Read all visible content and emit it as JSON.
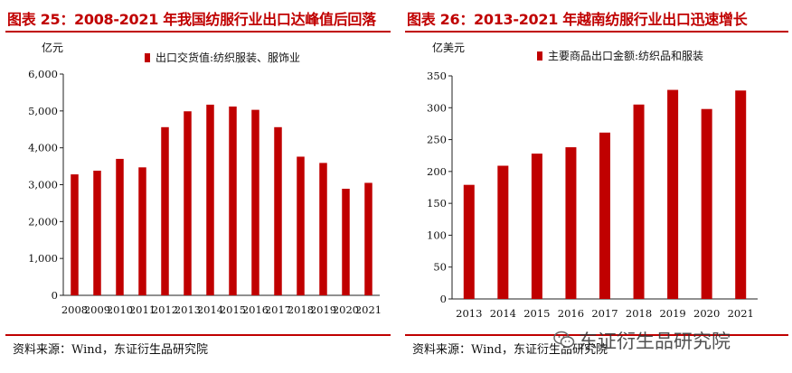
{
  "left": {
    "title": "图表 25：2008-2021 年我国纺服行业出口达峰值后回落",
    "source": "资料来源：Wind，东证衍生品研究院"
  },
  "right": {
    "title": "图表 26：2013-2021 年越南纺服行业出口迅速增长",
    "source": "资料来源：Wind，东证衍生品研究院"
  },
  "watermark": {
    "text": "东证衍生品研究院",
    "icon": "wechat-icon"
  },
  "chart_data": [
    {
      "type": "bar",
      "unit_label": "亿元",
      "categories": [
        "2008",
        "2009",
        "2010",
        "2011",
        "2012",
        "2013",
        "2014",
        "2015",
        "2016",
        "2017",
        "2018",
        "2019",
        "2020",
        "2021"
      ],
      "series": [
        {
          "name": "出口交货值:纺织服装、服饰业",
          "values": [
            3280,
            3380,
            3700,
            3470,
            4560,
            4990,
            5170,
            5120,
            5030,
            4560,
            3760,
            3590,
            2890,
            3050
          ]
        }
      ],
      "ylim": [
        0,
        6000
      ],
      "yticks": [
        "0",
        "1,000",
        "2,000",
        "3,000",
        "4,000",
        "5,000",
        "6,000"
      ],
      "legend_position": "top",
      "grid": false,
      "bar_color": "#c00000"
    },
    {
      "type": "bar",
      "unit_label": "亿美元",
      "categories": [
        "2013",
        "2014",
        "2015",
        "2016",
        "2017",
        "2018",
        "2019",
        "2020",
        "2021"
      ],
      "series": [
        {
          "name": "主要商品出口金额:纺织品和服装",
          "values": [
            179,
            209,
            228,
            238,
            261,
            305,
            328,
            298,
            327
          ]
        }
      ],
      "ylim": [
        0,
        350
      ],
      "yticks": [
        "0",
        "50",
        "100",
        "150",
        "200",
        "250",
        "300",
        "350"
      ],
      "legend_position": "top",
      "grid": false,
      "bar_color": "#c00000"
    }
  ]
}
